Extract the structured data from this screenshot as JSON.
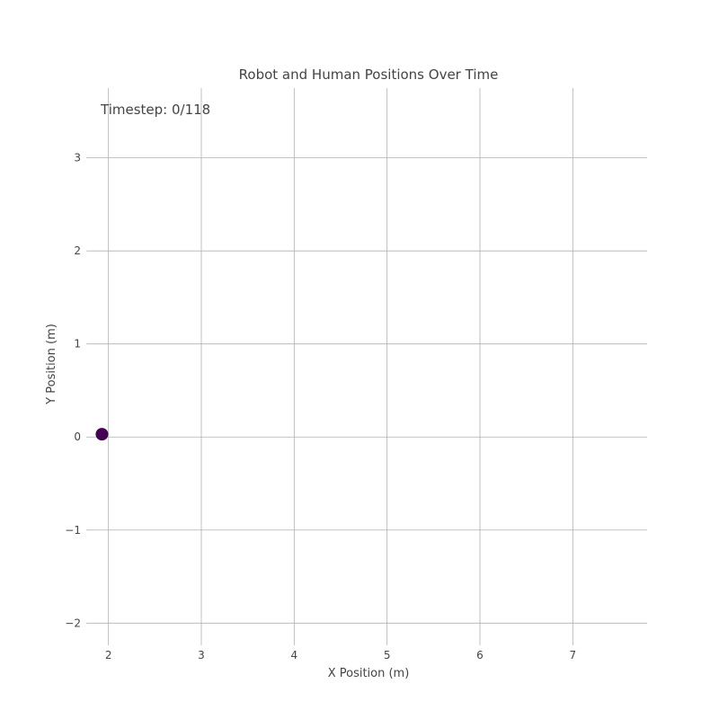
{
  "chart_data": {
    "type": "scatter",
    "title": "Robot and Human Positions Over Time",
    "xlabel": "X Position (m)",
    "ylabel": "Y Position (m)",
    "xlim": [
      1.8,
      7.8
    ],
    "ylim": [
      -2.2,
      3.75
    ],
    "xticks": [
      2,
      3,
      4,
      5,
      6,
      7
    ],
    "yticks": [
      -2,
      -1,
      0,
      1,
      2,
      3
    ],
    "ytick_labels": [
      "−2",
      "−1",
      "0",
      "1",
      "2",
      "3"
    ],
    "grid": true,
    "annotation": "Timestep: 0/118",
    "series": [
      {
        "points": [
          {
            "x": 1.93,
            "y": 0.03
          }
        ],
        "color": "#440154"
      }
    ]
  }
}
